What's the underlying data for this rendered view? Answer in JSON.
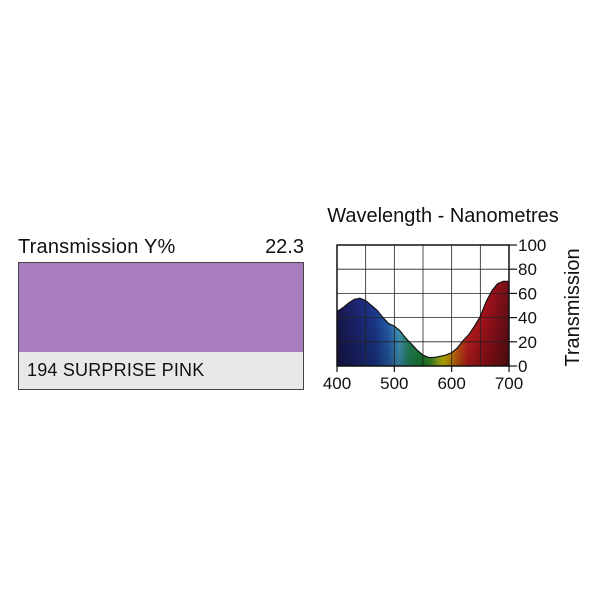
{
  "filter": {
    "transmission_label": "Transmission Y%",
    "transmission_value": "22.3",
    "name": "194 SURPRISE PINK",
    "swatch_color": "#a77dbd"
  },
  "chart_data": {
    "type": "area",
    "title": "Wavelength - Nanometres",
    "ylabel": "Transmission",
    "xlabel": "",
    "xlim": [
      400,
      700
    ],
    "ylim": [
      0,
      100
    ],
    "x_ticks": [
      400,
      500,
      600,
      700
    ],
    "y_ticks": [
      0,
      20,
      40,
      60,
      80,
      100
    ],
    "grid": true,
    "fill": "visible-spectrum",
    "x": [
      400,
      410,
      420,
      430,
      440,
      450,
      460,
      470,
      480,
      490,
      500,
      510,
      520,
      530,
      540,
      550,
      560,
      570,
      580,
      590,
      600,
      610,
      620,
      630,
      640,
      650,
      660,
      670,
      680,
      690,
      700
    ],
    "y": [
      45,
      48,
      52,
      55,
      56,
      54,
      50,
      46,
      40,
      35,
      33,
      29,
      23,
      18,
      13,
      9,
      7,
      7,
      8,
      9,
      11,
      15,
      21,
      26,
      33,
      41,
      53,
      62,
      68,
      70,
      70
    ]
  }
}
